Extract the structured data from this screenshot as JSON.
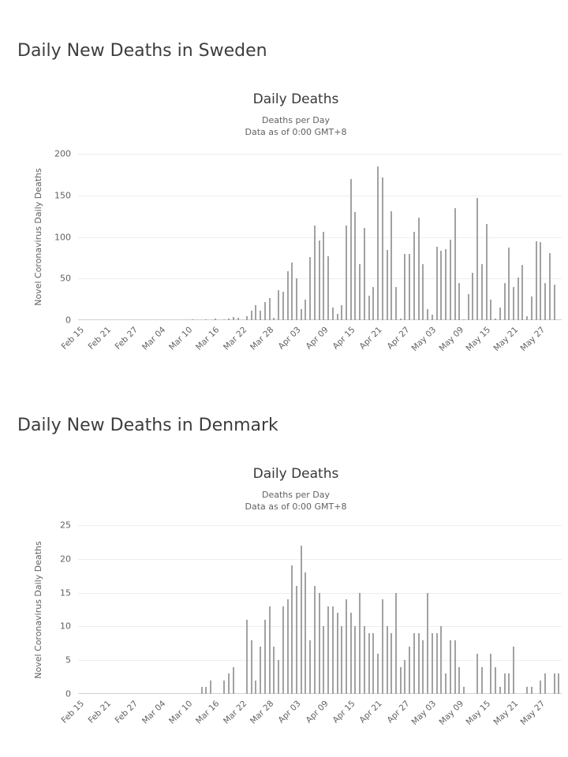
{
  "page": {
    "background": "#ffffff"
  },
  "colors": {
    "heading": "#3d3d3d",
    "chart_title": "#383838",
    "muted_text": "#616161",
    "bar": "#a2a2a2",
    "gridline": "#ededed",
    "axis_line": "#d0d0d0"
  },
  "sections": [
    {
      "heading": "Daily New Deaths in Sweden"
    },
    {
      "heading": "Daily New Deaths in Denmark"
    }
  ],
  "chart_data": [
    {
      "type": "bar",
      "title": "Daily Deaths",
      "subtitle_lines": [
        "Deaths per Day",
        "Data as of 0:00 GMT+8"
      ],
      "ylabel": "Novel Coronavirus Daily Deaths",
      "xlabel": "",
      "ylim": [
        0,
        200
      ],
      "ytick_interval": 50,
      "yticklabels": [
        "0",
        "50",
        "100",
        "150",
        "200"
      ],
      "xticklabels": [
        "Feb 15",
        "Feb 21",
        "Feb 27",
        "Mar 04",
        "Mar 10",
        "Mar 16",
        "Mar 22",
        "Mar 28",
        "Apr 03",
        "Apr 09",
        "Apr 15",
        "Apr 21",
        "Apr 27",
        "May 03",
        "May 09",
        "May 15",
        "May 21",
        "May 27"
      ],
      "xtick_days": [
        0,
        6,
        12,
        18,
        24,
        30,
        36,
        42,
        48,
        54,
        60,
        66,
        72,
        78,
        84,
        90,
        96,
        102
      ],
      "grid": true,
      "legend_position": "none",
      "bar_color": "#a2a2a2",
      "categories": [
        "Feb 15",
        "Feb 16",
        "Feb 17",
        "Feb 18",
        "Feb 19",
        "Feb 20",
        "Feb 21",
        "Feb 22",
        "Feb 23",
        "Feb 24",
        "Feb 25",
        "Feb 26",
        "Feb 27",
        "Feb 28",
        "Feb 29",
        "Mar 01",
        "Mar 02",
        "Mar 03",
        "Mar 04",
        "Mar 05",
        "Mar 06",
        "Mar 07",
        "Mar 08",
        "Mar 09",
        "Mar 10",
        "Mar 11",
        "Mar 12",
        "Mar 13",
        "Mar 14",
        "Mar 15",
        "Mar 16",
        "Mar 17",
        "Mar 18",
        "Mar 19",
        "Mar 20",
        "Mar 21",
        "Mar 22",
        "Mar 23",
        "Mar 24",
        "Mar 25",
        "Mar 26",
        "Mar 27",
        "Mar 28",
        "Mar 29",
        "Mar 30",
        "Mar 31",
        "Apr 01",
        "Apr 02",
        "Apr 03",
        "Apr 04",
        "Apr 05",
        "Apr 06",
        "Apr 07",
        "Apr 08",
        "Apr 09",
        "Apr 10",
        "Apr 11",
        "Apr 12",
        "Apr 13",
        "Apr 14",
        "Apr 15",
        "Apr 16",
        "Apr 17",
        "Apr 18",
        "Apr 19",
        "Apr 20",
        "Apr 21",
        "Apr 22",
        "Apr 23",
        "Apr 24",
        "Apr 25",
        "Apr 26",
        "Apr 27",
        "Apr 28",
        "Apr 29",
        "Apr 30",
        "May 01",
        "May 02",
        "May 03",
        "May 04",
        "May 05",
        "May 06",
        "May 07",
        "May 08",
        "May 09",
        "May 10",
        "May 11",
        "May 12",
        "May 13",
        "May 14",
        "May 15",
        "May 16",
        "May 17",
        "May 18",
        "May 19",
        "May 20",
        "May 21",
        "May 22",
        "May 23",
        "May 24",
        "May 25",
        "May 26",
        "May 27",
        "May 28",
        "May 29",
        "May 30",
        "May 31"
      ],
      "values": [
        0,
        0,
        0,
        0,
        0,
        0,
        0,
        0,
        0,
        0,
        0,
        0,
        0,
        0,
        0,
        0,
        0,
        0,
        0,
        0,
        0,
        0,
        0,
        0,
        0,
        1,
        0,
        0,
        1,
        0,
        2,
        0,
        1,
        2,
        4,
        3,
        0,
        5,
        11,
        18,
        11,
        22,
        27,
        3,
        36,
        34,
        59,
        69,
        50,
        13,
        25,
        76,
        114,
        96,
        106,
        77,
        15,
        8,
        18,
        114,
        170,
        130,
        67,
        111,
        29,
        40,
        185,
        172,
        84,
        131,
        40,
        2,
        80,
        80,
        106,
        123,
        67,
        13,
        7,
        88,
        83,
        85,
        97,
        135,
        45,
        1,
        31,
        57,
        147,
        67,
        116,
        25,
        2,
        15,
        45,
        87,
        40,
        51,
        66,
        5,
        28,
        95,
        94,
        45,
        81,
        43,
        0
      ]
    },
    {
      "type": "bar",
      "title": "Daily Deaths",
      "subtitle_lines": [
        "Deaths per Day",
        "Data as of 0:00 GMT+8"
      ],
      "ylabel": "Novel Coronavirus Daily Deaths",
      "xlabel": "",
      "ylim": [
        0,
        25
      ],
      "ytick_interval": 5,
      "yticklabels": [
        "0",
        "5",
        "10",
        "15",
        "20",
        "25"
      ],
      "xticklabels": [
        "Feb 15",
        "Feb 21",
        "Feb 27",
        "Mar 04",
        "Mar 10",
        "Mar 16",
        "Mar 22",
        "Mar 28",
        "Apr 03",
        "Apr 09",
        "Apr 15",
        "Apr 21",
        "Apr 27",
        "May 03",
        "May 09",
        "May 15",
        "May 21",
        "May 27"
      ],
      "xtick_days": [
        0,
        6,
        12,
        18,
        24,
        30,
        36,
        42,
        48,
        54,
        60,
        66,
        72,
        78,
        84,
        90,
        96,
        102
      ],
      "grid": true,
      "legend_position": "none",
      "bar_color": "#a2a2a2",
      "categories": [
        "Feb 15",
        "Feb 16",
        "Feb 17",
        "Feb 18",
        "Feb 19",
        "Feb 20",
        "Feb 21",
        "Feb 22",
        "Feb 23",
        "Feb 24",
        "Feb 25",
        "Feb 26",
        "Feb 27",
        "Feb 28",
        "Feb 29",
        "Mar 01",
        "Mar 02",
        "Mar 03",
        "Mar 04",
        "Mar 05",
        "Mar 06",
        "Mar 07",
        "Mar 08",
        "Mar 09",
        "Mar 10",
        "Mar 11",
        "Mar 12",
        "Mar 13",
        "Mar 14",
        "Mar 15",
        "Mar 16",
        "Mar 17",
        "Mar 18",
        "Mar 19",
        "Mar 20",
        "Mar 21",
        "Mar 22",
        "Mar 23",
        "Mar 24",
        "Mar 25",
        "Mar 26",
        "Mar 27",
        "Mar 28",
        "Mar 29",
        "Mar 30",
        "Mar 31",
        "Apr 01",
        "Apr 02",
        "Apr 03",
        "Apr 04",
        "Apr 05",
        "Apr 06",
        "Apr 07",
        "Apr 08",
        "Apr 09",
        "Apr 10",
        "Apr 11",
        "Apr 12",
        "Apr 13",
        "Apr 14",
        "Apr 15",
        "Apr 16",
        "Apr 17",
        "Apr 18",
        "Apr 19",
        "Apr 20",
        "Apr 21",
        "Apr 22",
        "Apr 23",
        "Apr 24",
        "Apr 25",
        "Apr 26",
        "Apr 27",
        "Apr 28",
        "Apr 29",
        "Apr 30",
        "May 01",
        "May 02",
        "May 03",
        "May 04",
        "May 05",
        "May 06",
        "May 07",
        "May 08",
        "May 09",
        "May 10",
        "May 11",
        "May 12",
        "May 13",
        "May 14",
        "May 15",
        "May 16",
        "May 17",
        "May 18",
        "May 19",
        "May 20",
        "May 21",
        "May 22",
        "May 23",
        "May 24",
        "May 25",
        "May 26",
        "May 27",
        "May 28",
        "May 29",
        "May 30",
        "May 31"
      ],
      "values": [
        0,
        0,
        0,
        0,
        0,
        0,
        0,
        0,
        0,
        0,
        0,
        0,
        0,
        0,
        0,
        0,
        0,
        0,
        0,
        0,
        0,
        0,
        0,
        0,
        0,
        0,
        0,
        1,
        1,
        2,
        0,
        0,
        2,
        3,
        4,
        0,
        0,
        11,
        8,
        2,
        7,
        11,
        13,
        7,
        5,
        13,
        14,
        19,
        16,
        22,
        18,
        8,
        16,
        15,
        10,
        13,
        13,
        12,
        10,
        14,
        12,
        10,
        15,
        10,
        9,
        9,
        6,
        14,
        10,
        9,
        15,
        4,
        5,
        7,
        9,
        9,
        8,
        15,
        9,
        9,
        10,
        3,
        8,
        8,
        4,
        1,
        0,
        0,
        6,
        4,
        0,
        6,
        4,
        1,
        3,
        3,
        7,
        0,
        0,
        1,
        1,
        0,
        2,
        3,
        0,
        3,
        3
      ]
    }
  ]
}
